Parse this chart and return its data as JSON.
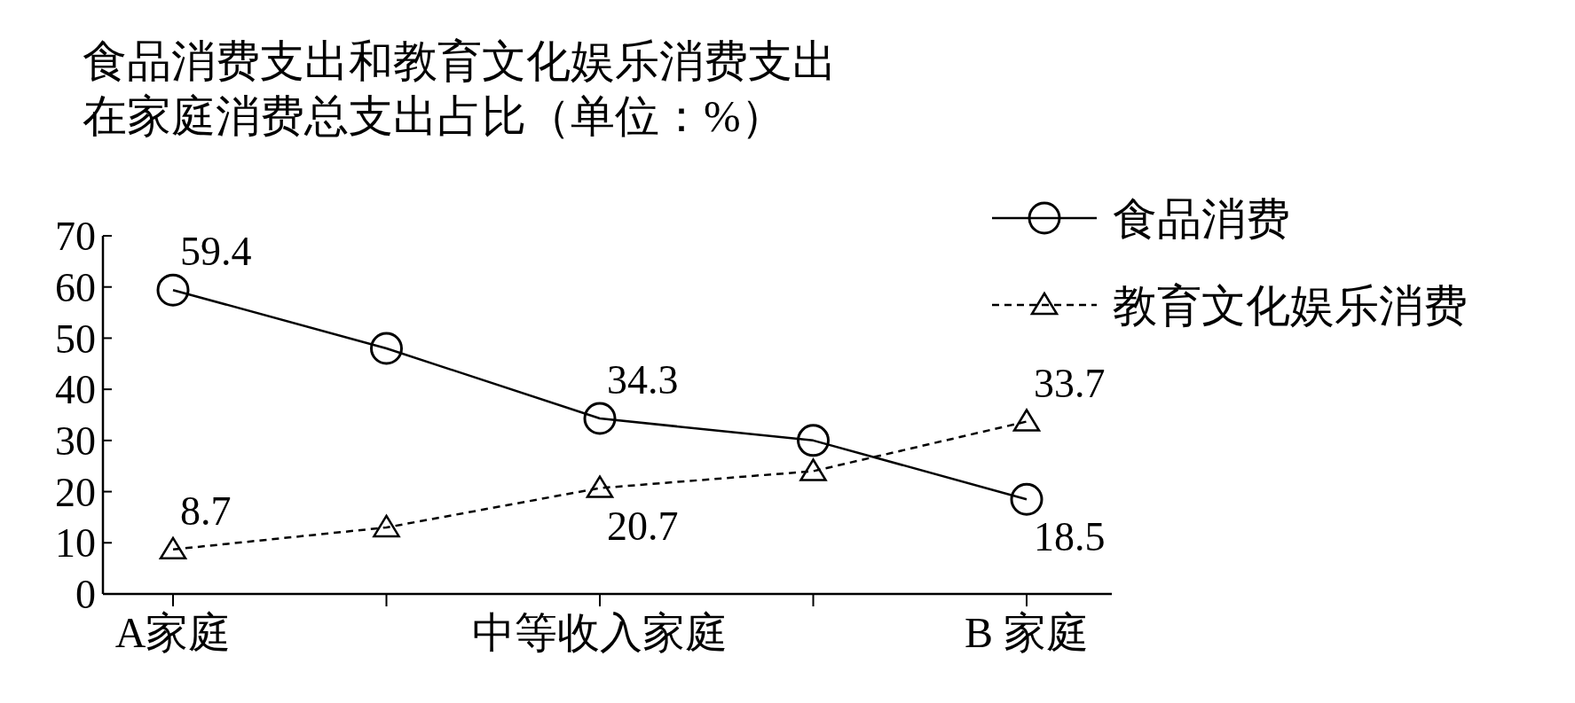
{
  "chart_data": {
    "type": "line",
    "title": "食品消费支出和教育文化娱乐消费支出在家庭消费总支出占比（单位：%）",
    "categories": [
      "A家庭",
      null,
      "中等收入家庭",
      null,
      "B 家庭"
    ],
    "series": [
      {
        "name": "食品消费",
        "color": "#000000",
        "marker": "circle",
        "line_style": "solid",
        "values": [
          59.4,
          48,
          34.3,
          30,
          18.5
        ],
        "value_labels": [
          "59.4",
          null,
          "34.3",
          null,
          "18.5"
        ]
      },
      {
        "name": "教育文化娱乐消费",
        "color": "#000000",
        "marker": "triangle",
        "line_style": "dashed",
        "values": [
          8.7,
          13,
          20.7,
          24,
          33.7
        ],
        "value_labels": [
          "8.7",
          null,
          "20.7",
          null,
          "33.7"
        ]
      }
    ],
    "ylim": [
      0,
      70
    ],
    "yticks": [
      0,
      10,
      20,
      30,
      40,
      50,
      60,
      70
    ],
    "grid": false,
    "legend": "top right"
  }
}
